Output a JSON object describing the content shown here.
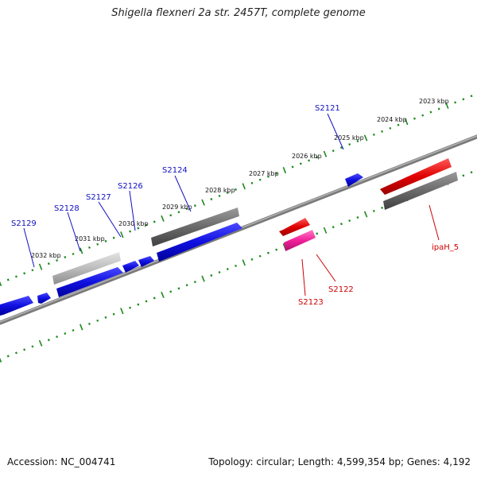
{
  "title": "Shigella flexneri 2a str. 2457T, complete genome",
  "footer": {
    "accession": "Accession: NC_004741",
    "summary": "Topology: circular; Length: 4,599,354 bp; Genes: 4,192"
  },
  "colors": {
    "backbone": "#8c8c8c",
    "tick": "#1a8a1a",
    "forward_gene": "#1010e0",
    "reverse_gene": "#e00000",
    "pseudo_gene": "#ff3aa0",
    "feature_dark": "#6e6e6e",
    "feature_light": "#b8b8b8",
    "label_forward": "#1010c0",
    "label_reverse": "#cc0000"
  },
  "ticks": [
    {
      "kbp": 2023,
      "label": "2023 kbp"
    },
    {
      "kbp": 2024,
      "label": "2024 kbp"
    },
    {
      "kbp": 2025,
      "label": "2025 kbp"
    },
    {
      "kbp": 2026,
      "label": "2026 kbp"
    },
    {
      "kbp": 2027,
      "label": "2027 kbp"
    },
    {
      "kbp": 2028,
      "label": "2028 kbp"
    },
    {
      "kbp": 2029,
      "label": "2029 kbp"
    },
    {
      "kbp": 2030,
      "label": "2030 kbp"
    },
    {
      "kbp": 2031,
      "label": "2031 kbp"
    },
    {
      "kbp": 2032,
      "label": "2032 kbp"
    }
  ],
  "gene_labels": [
    {
      "name": "S2121",
      "strand": "+"
    },
    {
      "name": "S2124",
      "strand": "+"
    },
    {
      "name": "S2126",
      "strand": "+"
    },
    {
      "name": "S2127",
      "strand": "+"
    },
    {
      "name": "S2128",
      "strand": "+"
    },
    {
      "name": "S2129",
      "strand": "+"
    },
    {
      "name": "ipaH_5",
      "strand": "-"
    },
    {
      "name": "S2122",
      "strand": "-"
    },
    {
      "name": "S2123",
      "strand": "-"
    }
  ]
}
